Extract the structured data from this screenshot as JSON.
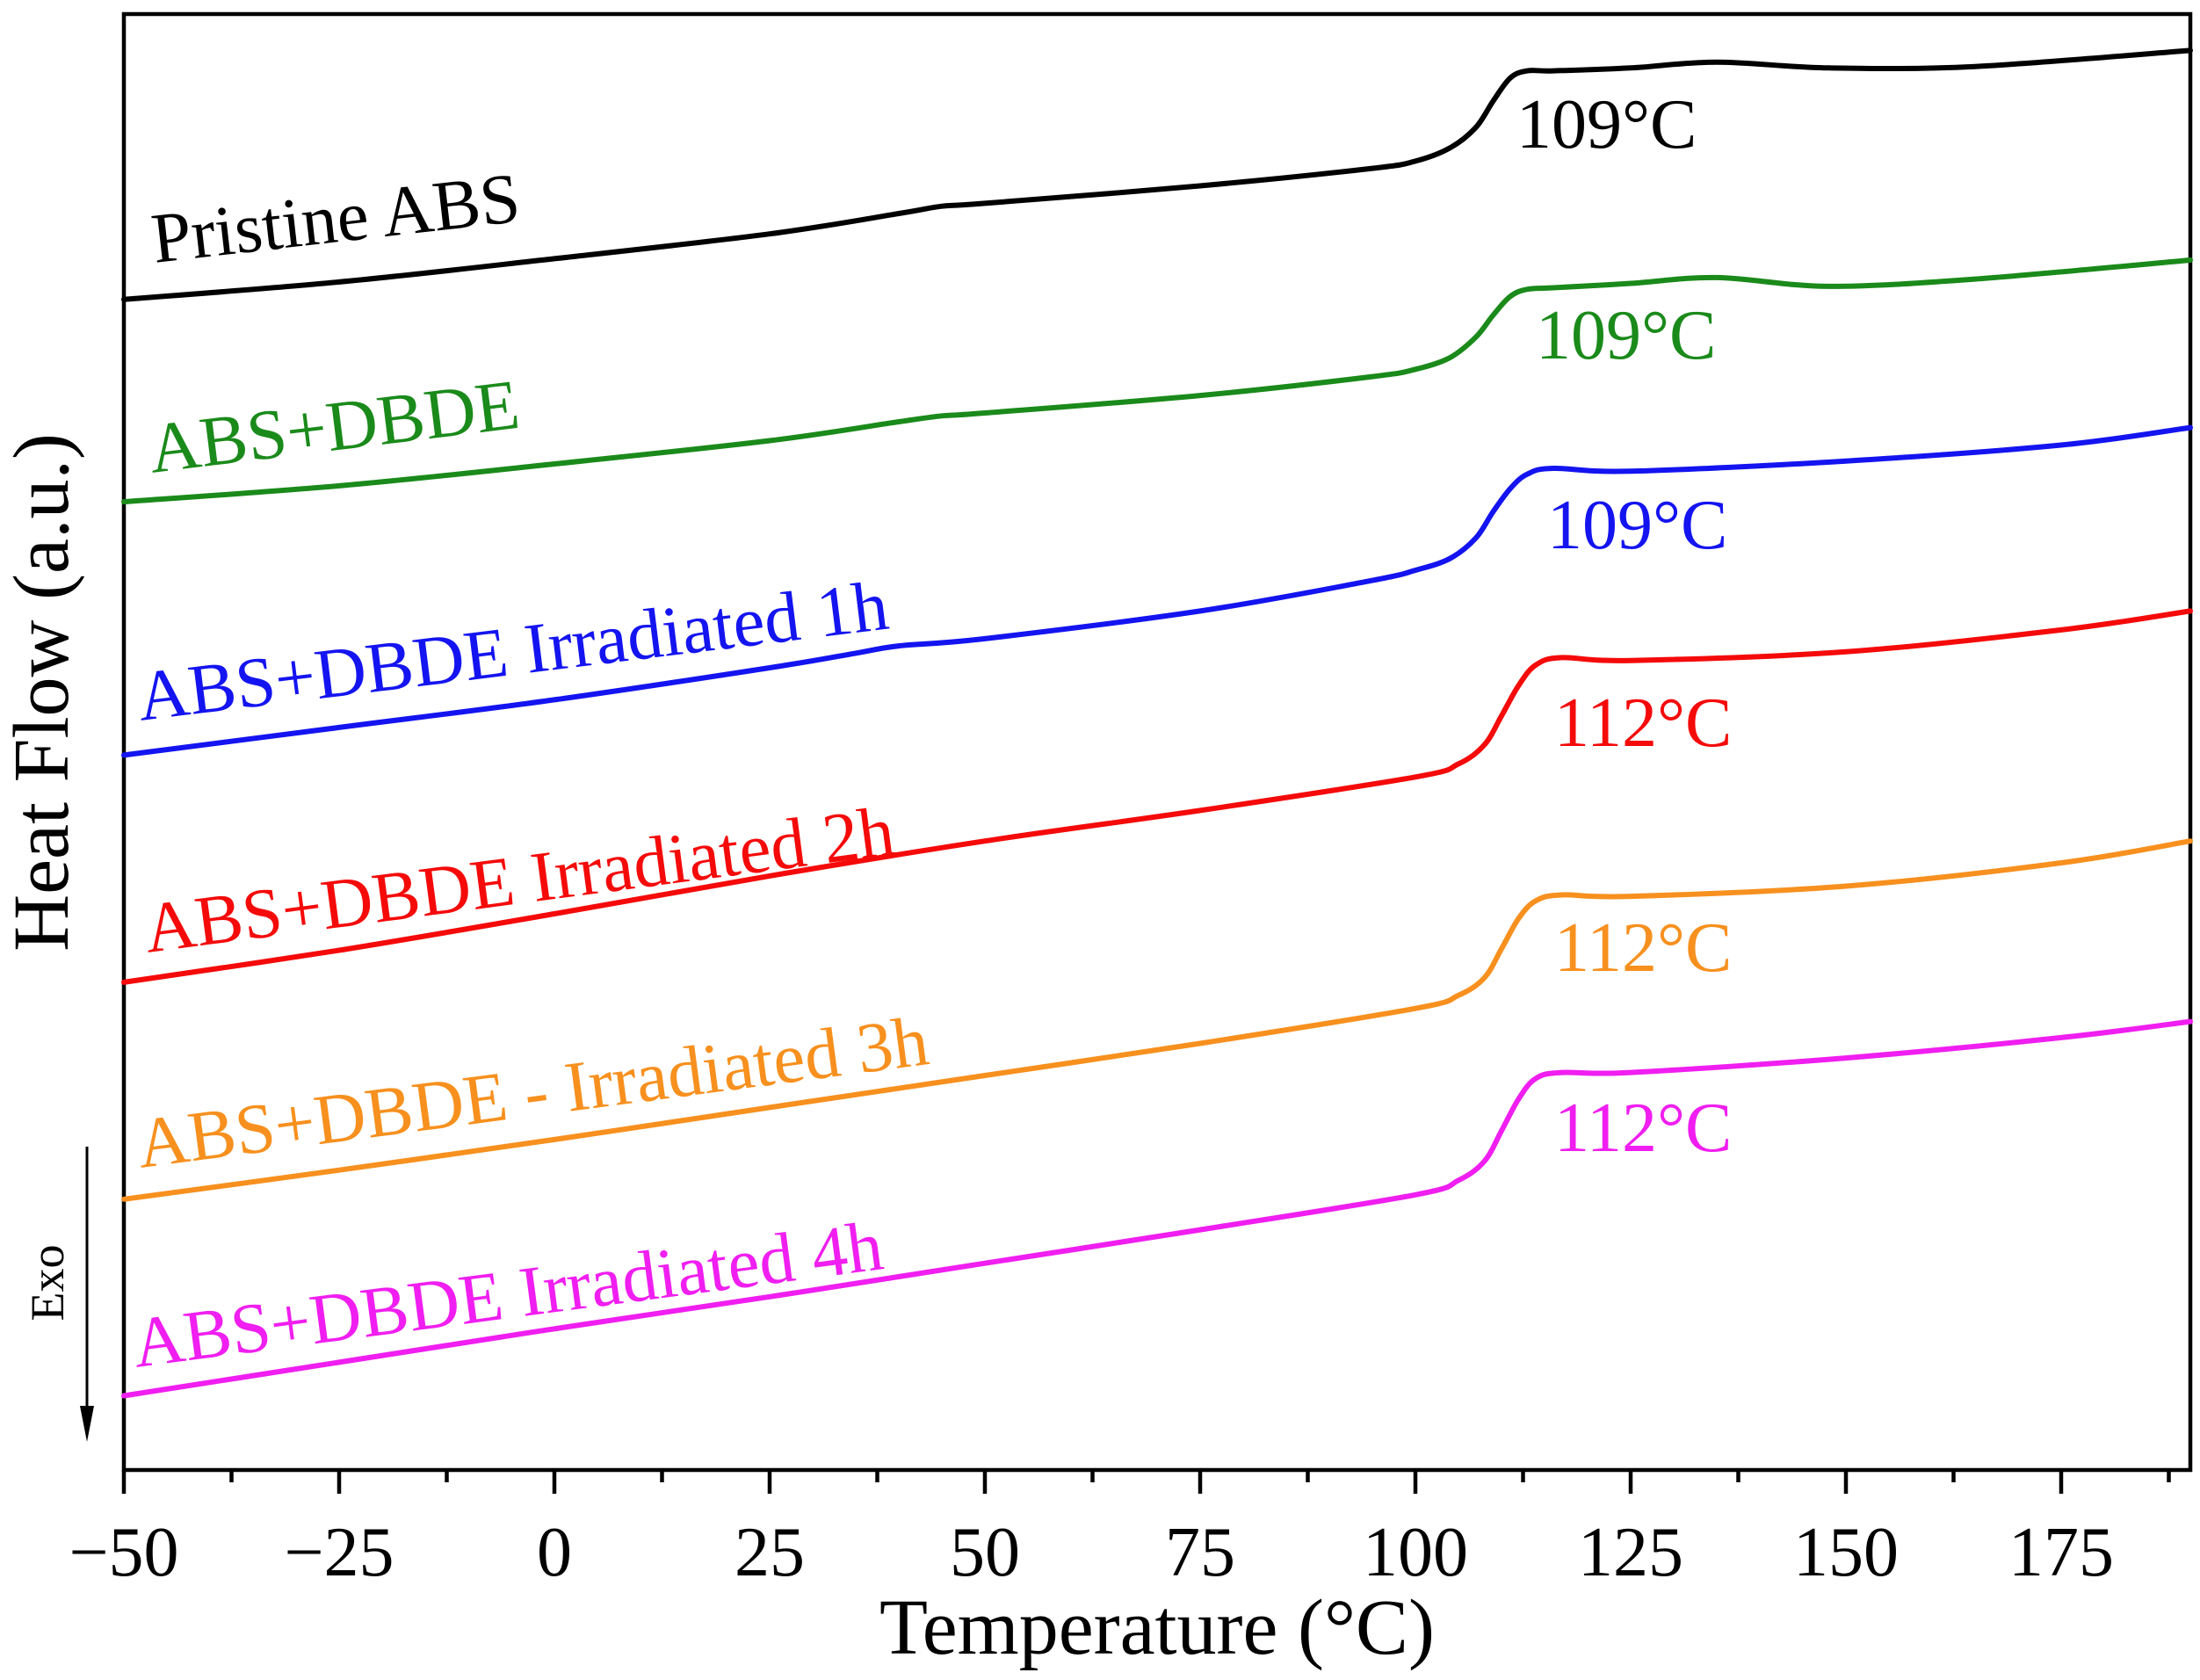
{
  "chart_data": {
    "type": "line",
    "xlabel": "Temperature (°C)",
    "ylabel": "Heat Flow (a.u.)",
    "direction_label": "Exo",
    "xlim": [
      -50,
      190
    ],
    "ylim": [
      0,
      100
    ],
    "xticks": [
      -50,
      -25,
      0,
      25,
      50,
      75,
      100,
      125,
      150,
      175
    ],
    "xtick_labels": [
      "−50",
      "−25",
      "0",
      "25",
      "50",
      "75",
      "100",
      "125",
      "150",
      "175"
    ],
    "grid": false,
    "series": [
      {
        "name": "Pristine ABS",
        "annotation": "109°C",
        "color": "#000000",
        "points": [
          [
            -50,
            80.4
          ],
          [
            -25,
            81.6
          ],
          [
            0,
            83.2
          ],
          [
            25,
            84.9
          ],
          [
            40,
            86.3
          ],
          [
            45,
            86.8
          ],
          [
            50,
            87.0
          ],
          [
            75,
            88.2
          ],
          [
            95,
            89.4
          ],
          [
            100,
            89.9
          ],
          [
            104,
            90.8
          ],
          [
            107,
            92.2
          ],
          [
            109,
            94.0
          ],
          [
            111,
            95.6
          ],
          [
            113,
            96.1
          ],
          [
            116,
            96.1
          ],
          [
            125,
            96.3
          ],
          [
            135,
            96.7
          ],
          [
            148,
            96.3
          ],
          [
            165,
            96.4
          ],
          [
            190,
            97.5
          ]
        ]
      },
      {
        "name": "ABS+DBDE",
        "annotation": "109°C",
        "color": "#1a8a1a",
        "points": [
          [
            -50,
            66.5
          ],
          [
            -25,
            67.6
          ],
          [
            0,
            69.1
          ],
          [
            25,
            70.7
          ],
          [
            40,
            72.0
          ],
          [
            45,
            72.4
          ],
          [
            50,
            72.6
          ],
          [
            75,
            73.8
          ],
          [
            95,
            75.1
          ],
          [
            100,
            75.6
          ],
          [
            104,
            76.4
          ],
          [
            107,
            77.8
          ],
          [
            109,
            79.3
          ],
          [
            111,
            80.6
          ],
          [
            113,
            81.1
          ],
          [
            116,
            81.2
          ],
          [
            125,
            81.5
          ],
          [
            135,
            81.9
          ],
          [
            148,
            81.3
          ],
          [
            165,
            81.8
          ],
          [
            190,
            83.1
          ]
        ]
      },
      {
        "name": "ABS+DBDE Irradiated 1h",
        "annotation": "109°C",
        "color": "#1414f0",
        "points": [
          [
            -50,
            49.1
          ],
          [
            -25,
            51.0
          ],
          [
            0,
            52.9
          ],
          [
            25,
            55.1
          ],
          [
            35,
            56.1
          ],
          [
            40,
            56.6
          ],
          [
            50,
            57.1
          ],
          [
            75,
            59.0
          ],
          [
            95,
            61.1
          ],
          [
            100,
            61.8
          ],
          [
            104,
            62.6
          ],
          [
            107,
            64.0
          ],
          [
            109,
            65.8
          ],
          [
            111,
            67.4
          ],
          [
            113,
            68.4
          ],
          [
            116,
            68.8
          ],
          [
            125,
            68.6
          ],
          [
            150,
            69.3
          ],
          [
            175,
            70.4
          ],
          [
            190,
            71.6
          ]
        ]
      },
      {
        "name": "ABS+DBDE Irradiated 2h",
        "annotation": "112°C",
        "color": "#f50a0a",
        "points": [
          [
            -50,
            33.5
          ],
          [
            -25,
            35.7
          ],
          [
            0,
            38.2
          ],
          [
            25,
            40.8
          ],
          [
            50,
            43.2
          ],
          [
            75,
            45.3
          ],
          [
            100,
            47.6
          ],
          [
            105,
            48.5
          ],
          [
            108,
            49.8
          ],
          [
            110,
            51.8
          ],
          [
            112,
            53.9
          ],
          [
            114,
            55.3
          ],
          [
            117,
            55.8
          ],
          [
            125,
            55.6
          ],
          [
            150,
            56.2
          ],
          [
            175,
            57.7
          ],
          [
            190,
            59.0
          ]
        ]
      },
      {
        "name": "ABS+DBDE - Irradiated 3h",
        "annotation": "112°C",
        "color": "#f7901e",
        "points": [
          [
            -50,
            18.6
          ],
          [
            -25,
            20.6
          ],
          [
            0,
            22.7
          ],
          [
            25,
            24.9
          ],
          [
            50,
            27.1
          ],
          [
            75,
            29.3
          ],
          [
            100,
            31.7
          ],
          [
            105,
            32.6
          ],
          [
            108,
            33.8
          ],
          [
            110,
            35.8
          ],
          [
            112,
            37.9
          ],
          [
            114,
            39.1
          ],
          [
            117,
            39.5
          ],
          [
            125,
            39.4
          ],
          [
            150,
            40.1
          ],
          [
            175,
            41.7
          ],
          [
            190,
            43.2
          ]
        ]
      },
      {
        "name": "ABS+DBDE Irradiated 4h",
        "annotation": "112°C",
        "color": "#f01ef0",
        "points": [
          [
            -50,
            5.1
          ],
          [
            -25,
            7.4
          ],
          [
            0,
            9.7
          ],
          [
            25,
            11.9
          ],
          [
            50,
            14.2
          ],
          [
            75,
            16.5
          ],
          [
            100,
            18.9
          ],
          [
            105,
            19.9
          ],
          [
            108,
            21.2
          ],
          [
            110,
            23.3
          ],
          [
            112,
            25.5
          ],
          [
            114,
            26.9
          ],
          [
            117,
            27.3
          ],
          [
            125,
            27.3
          ],
          [
            150,
            28.3
          ],
          [
            175,
            29.7
          ],
          [
            190,
            30.8
          ]
        ]
      }
    ]
  }
}
